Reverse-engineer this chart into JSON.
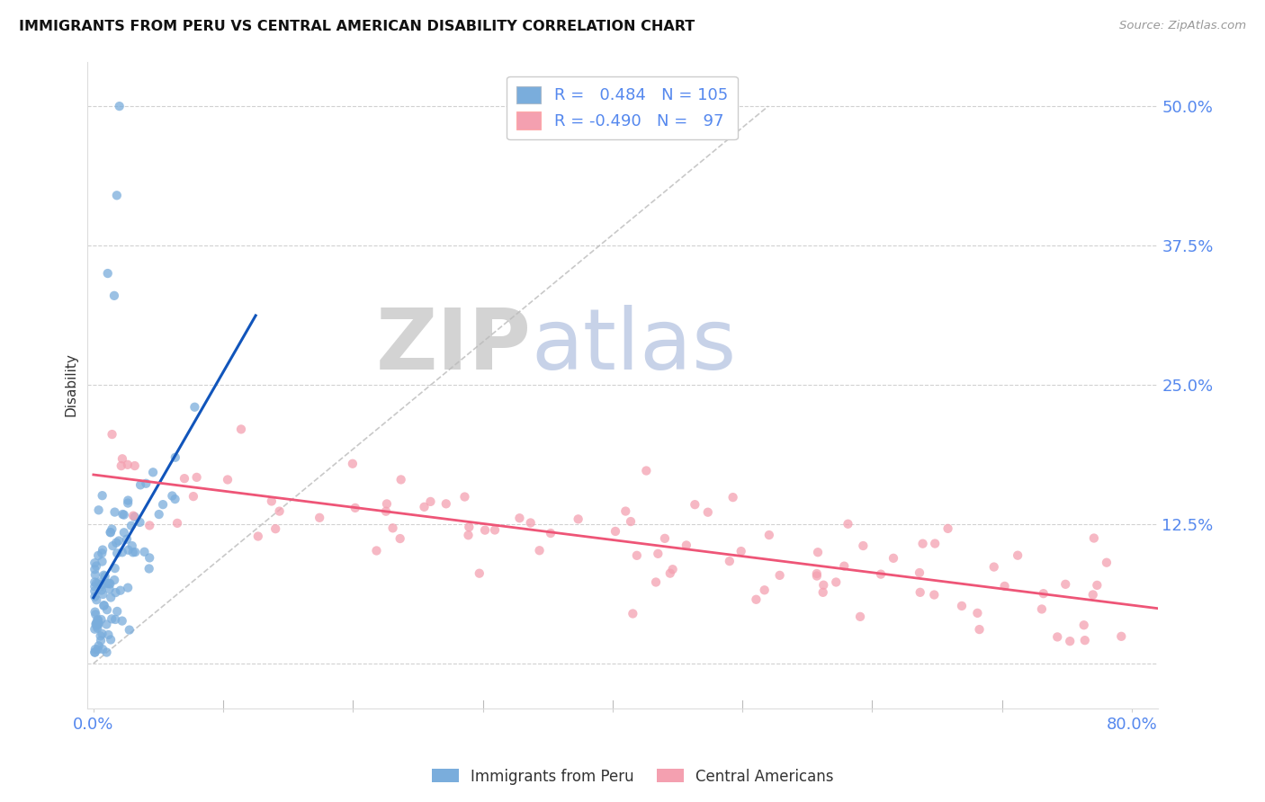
{
  "title": "IMMIGRANTS FROM PERU VS CENTRAL AMERICAN DISABILITY CORRELATION CHART",
  "source": "Source: ZipAtlas.com",
  "ylabel": "Disability",
  "xlim": [
    -0.005,
    0.82
  ],
  "ylim": [
    -0.04,
    0.54
  ],
  "xticks": [
    0.0,
    0.1,
    0.2,
    0.3,
    0.4,
    0.5,
    0.6,
    0.7,
    0.8
  ],
  "xticklabels": [
    "0.0%",
    "",
    "",
    "",
    "",
    "",
    "",
    "",
    "80.0%"
  ],
  "yticks": [
    0.0,
    0.125,
    0.25,
    0.375,
    0.5
  ],
  "yticklabels": [
    "",
    "12.5%",
    "25.0%",
    "37.5%",
    "50.0%"
  ],
  "legend_R_blue": "0.484",
  "legend_N_blue": "105",
  "legend_R_pink": "-0.490",
  "legend_N_pink": "97",
  "blue_color": "#7AADDC",
  "pink_color": "#F4A0B0",
  "blue_line_color": "#1155BB",
  "pink_line_color": "#EE5577",
  "dashed_line_color": "#BBBBBB",
  "grid_color": "#CCCCCC",
  "title_color": "#111111",
  "tick_label_color": "#5588EE",
  "background_color": "#FFFFFF",
  "watermark_zip": "ZIP",
  "watermark_atlas": "atlas"
}
